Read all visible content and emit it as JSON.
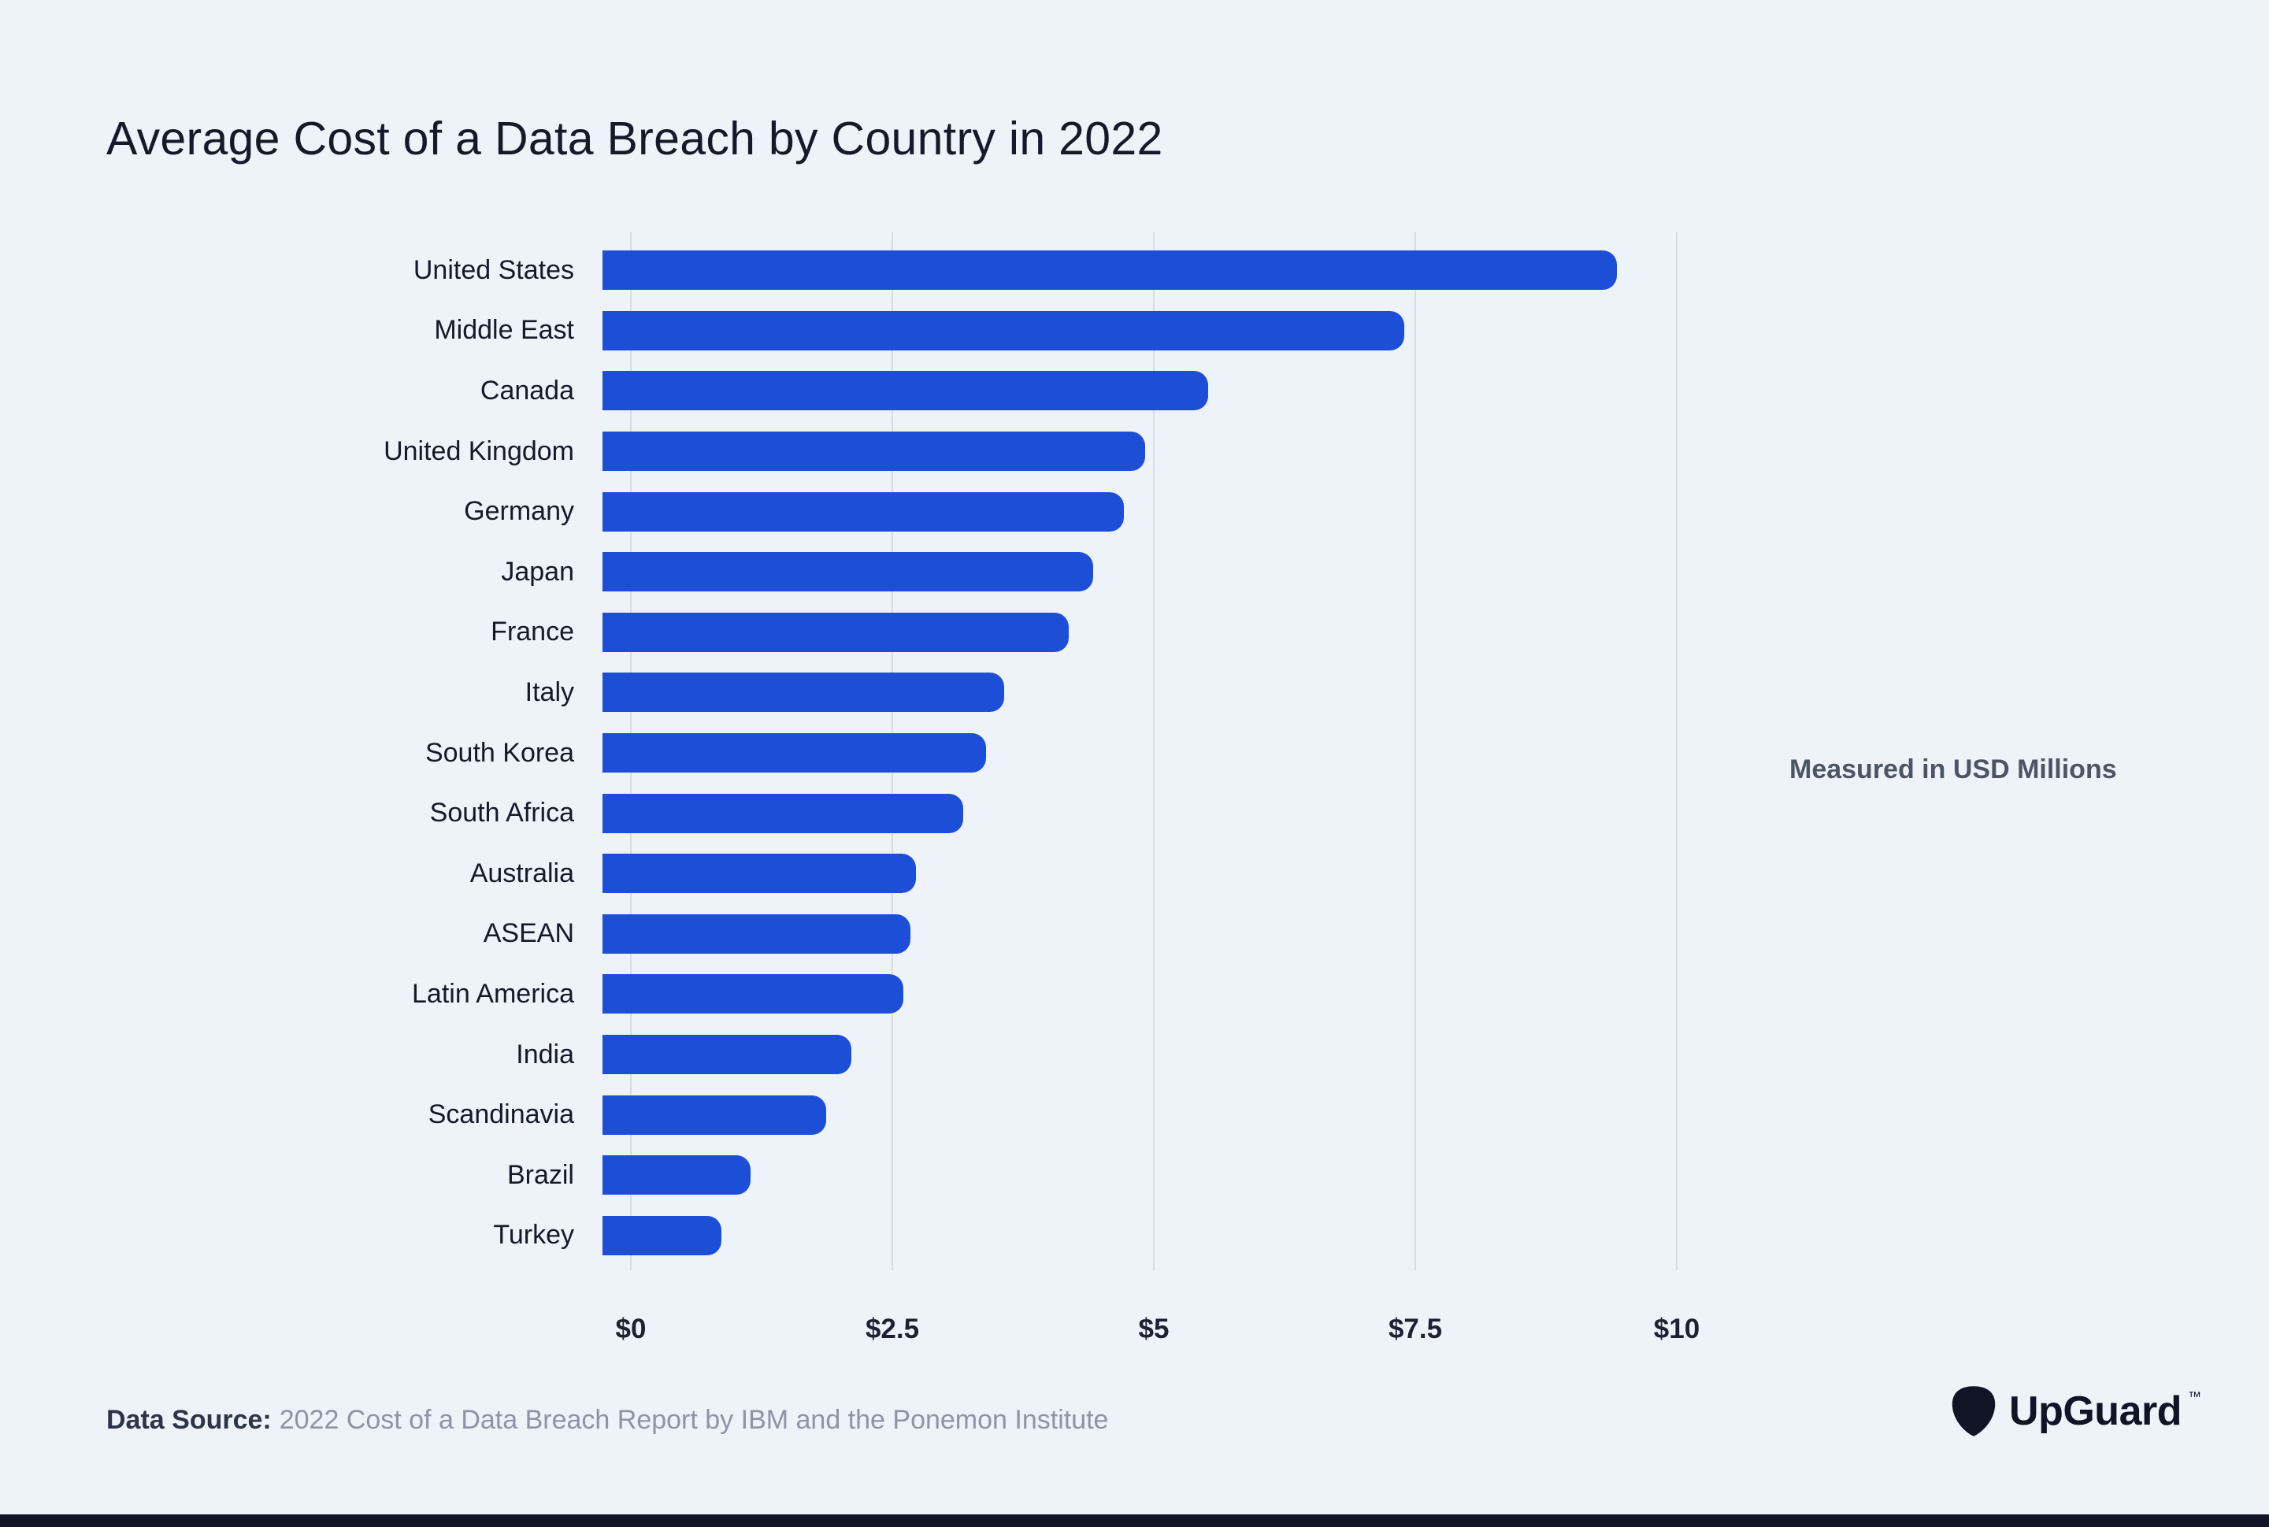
{
  "page": {
    "title": "Average Cost of a Data Breach by Country in 2022",
    "unit_note": "Measured in USD Millions",
    "source_label": "Data Source:",
    "source_text": "2022 Cost of a Data Breach Report by IBM and the Ponemon Institute",
    "brand": {
      "name": "UpGuard",
      "tm": "™",
      "logo_icon": "upguard-pick-icon"
    },
    "colors": {
      "background": "#eef2f9",
      "bar": "#1d4ed8",
      "text_dark": "#141a27",
      "text_gray": "#8d95a4",
      "gridline": "#d7dce6",
      "footer_strip": "#0f1524"
    }
  },
  "chart_data": {
    "type": "bar",
    "orientation": "horizontal",
    "title": "Average Cost of a Data Breach by Country in 2022",
    "unit": "USD Millions",
    "categories": [
      "United States",
      "Middle East",
      "Canada",
      "United Kingdom",
      "Germany",
      "Japan",
      "France",
      "Italy",
      "South Korea",
      "South Africa",
      "Australia",
      "ASEAN",
      "Latin America",
      "India",
      "Scandinavia",
      "Brazil",
      "Turkey"
    ],
    "values": [
      9.44,
      7.46,
      5.64,
      5.05,
      4.85,
      4.57,
      4.34,
      3.74,
      3.57,
      3.36,
      2.92,
      2.87,
      2.8,
      2.32,
      2.08,
      1.38,
      1.11
    ],
    "xlim": [
      0,
      10
    ],
    "xticks": [
      {
        "value": 0,
        "label": "$0"
      },
      {
        "value": 2.5,
        "label": "$2.5"
      },
      {
        "value": 5,
        "label": "$5"
      },
      {
        "value": 7.5,
        "label": "$7.5"
      },
      {
        "value": 10,
        "label": "$10"
      }
    ],
    "grid": true,
    "legend": false,
    "bar_color": "#1d4ed8"
  }
}
